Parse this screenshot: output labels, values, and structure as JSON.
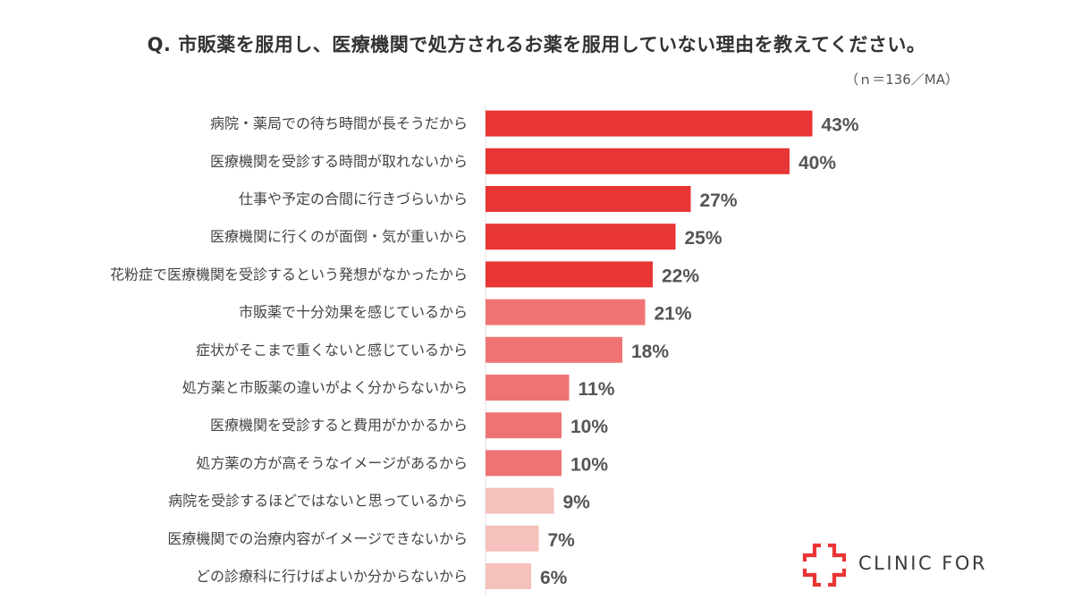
{
  "title": "Q. 市販薬を服用し、医療機関で処方されるお薬を服用していない理由を教えてください。",
  "note": "（ｎ＝136／MA）",
  "chart_data": {
    "type": "bar",
    "orientation": "horizontal",
    "categories": [
      "病院・薬局での待ち時間が長そうだから",
      "医療機関を受診する時間が取れないから",
      "仕事や予定の合間に行きづらいから",
      "医療機関に行くのが面倒・気が重いから",
      "花粉症で医療機関を受診するという発想がなかったから",
      "市販薬で十分効果を感じているから",
      "症状がそこまで重くないと感じているから",
      "処方薬と市販薬の違いがよく分からないから",
      "医療機関を受診すると費用がかかるから",
      "処方薬の方が高そうなイメージがあるから",
      "病院を受診するほどではないと思っているから",
      "医療機関での治療内容がイメージできないから",
      "どの診療科に行けばよいか分からないから"
    ],
    "values": [
      43,
      40,
      27,
      25,
      22,
      21,
      18,
      11,
      10,
      10,
      9,
      7,
      6
    ],
    "labels": [
      "43%",
      "40%",
      "27%",
      "25%",
      "22%",
      "21%",
      "18%",
      "11%",
      "10%",
      "10%",
      "9%",
      "7%",
      "6%"
    ],
    "colors": [
      "#e83535",
      "#e83535",
      "#e83535",
      "#e83535",
      "#e83535",
      "#ee7474",
      "#ee7474",
      "#ee7474",
      "#ee7474",
      "#ee7474",
      "#f6c1bc",
      "#f6c1bc",
      "#f6c1bc"
    ],
    "xlim": [
      0,
      50
    ],
    "grid": false,
    "legend": "none"
  },
  "logo": {
    "text": "CLINIC FOR",
    "icon": "medical-cross-icon",
    "color": "#e83535"
  }
}
